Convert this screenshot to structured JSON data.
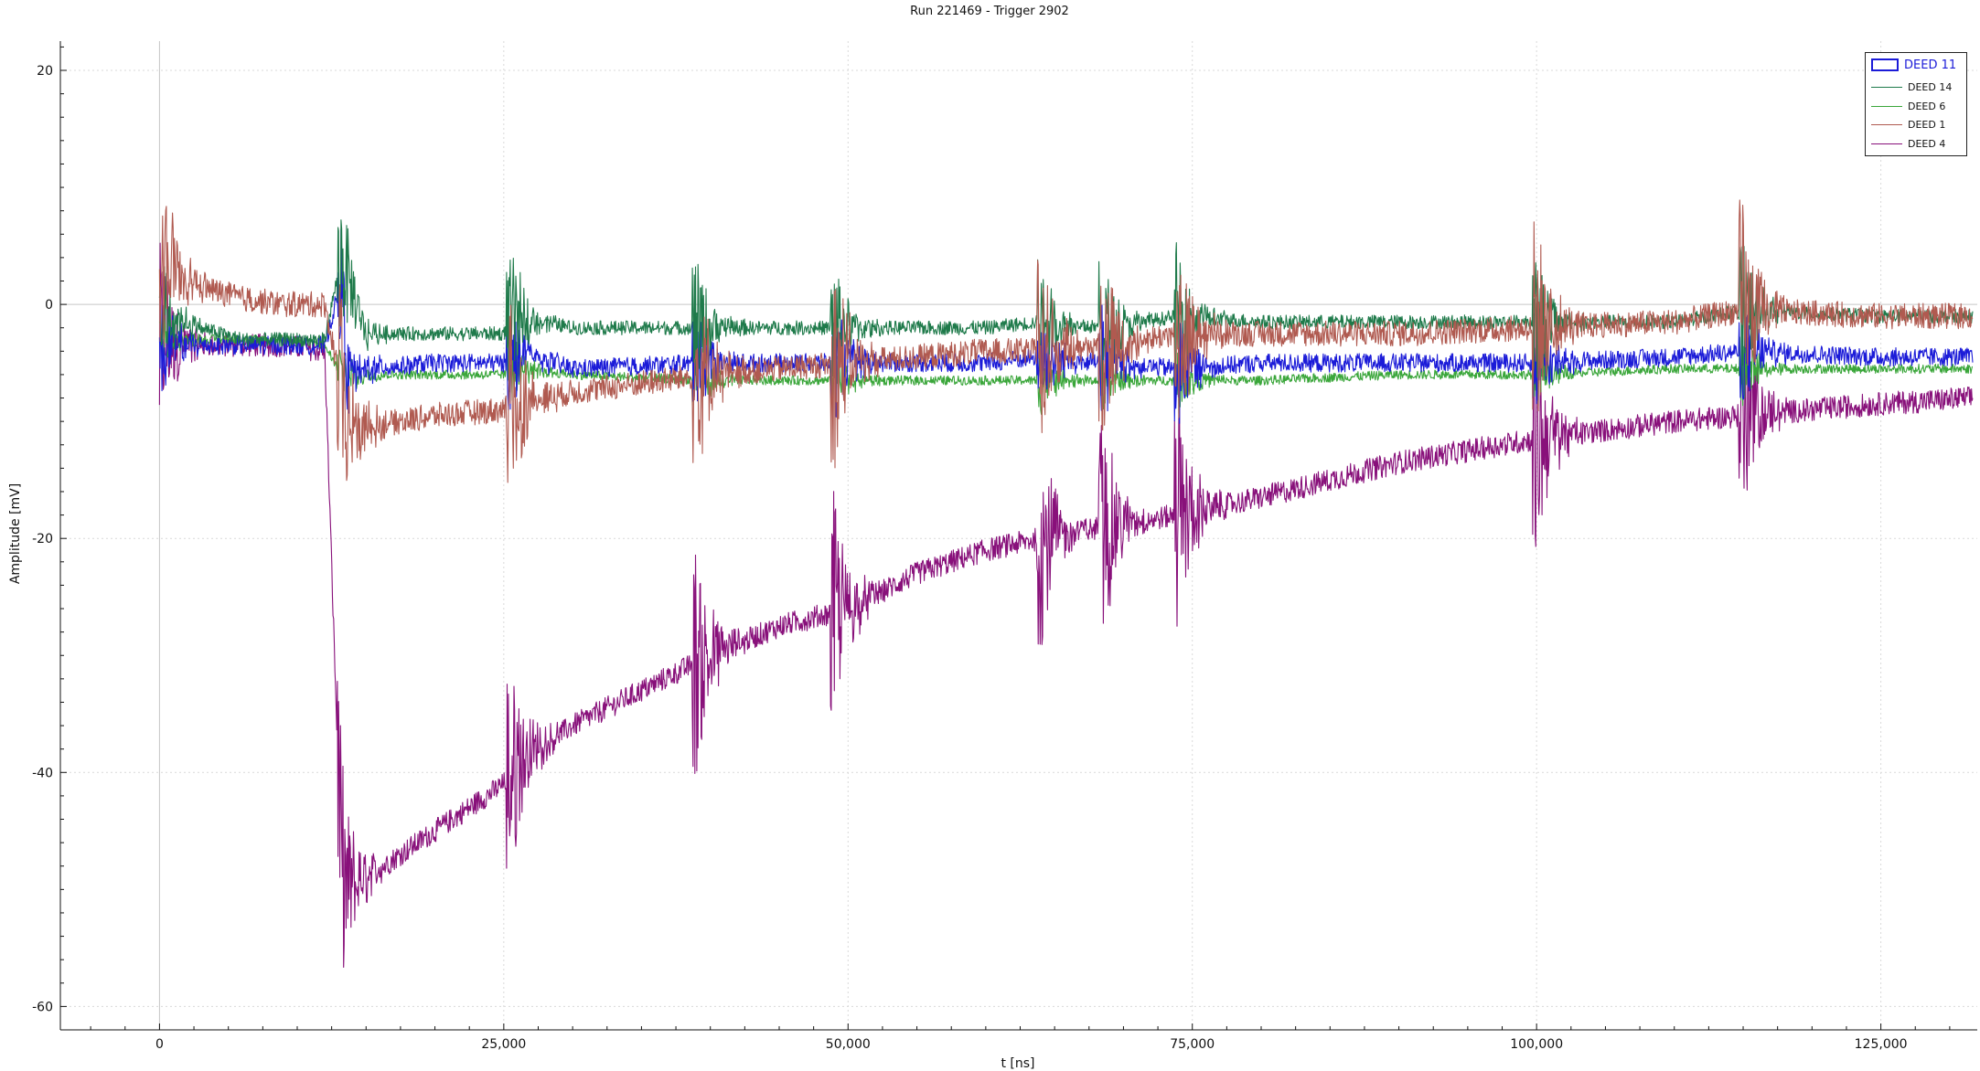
{
  "chart_data": {
    "type": "line",
    "title": "Run 221469 - Trigger 2902",
    "xlabel": "t [ns]",
    "ylabel": "Amplitude [mV]",
    "xlim": [
      -7200,
      132000
    ],
    "ylim": [
      -62,
      22.5
    ],
    "xticks": [
      0,
      25000,
      50000,
      75000,
      100000,
      125000
    ],
    "xtick_labels": [
      "0",
      "25,000",
      "50,000",
      "75,000",
      "100,000",
      "125,000"
    ],
    "yticks": [
      -60,
      -40,
      -20,
      0,
      20
    ],
    "ytick_labels": [
      "-60",
      "-40",
      "-20",
      "0",
      "20"
    ],
    "grid": true,
    "legend_position": "top-right",
    "series": [
      {
        "name": "DEED 11",
        "color": "#1b1bd8",
        "selected": true,
        "x": [
          0,
          200,
          1000,
          3000,
          6000,
          9000,
          12000,
          13200,
          13600,
          15000,
          20000,
          25000,
          26000,
          30000,
          40000,
          50000,
          60000,
          64000,
          68500,
          74000,
          80000,
          90000,
          100000,
          110000,
          115000,
          125000,
          131500
        ],
        "values": [
          -4.5,
          -4,
          -3.5,
          -3.5,
          -3.5,
          -3.5,
          -3.5,
          2,
          -6,
          -5.5,
          -5,
          -5,
          -4,
          -5.5,
          -5,
          -5,
          -5,
          -4.5,
          -5,
          -5.5,
          -5,
          -5,
          -5,
          -4.5,
          -4,
          -4.5,
          -4.5
        ]
      },
      {
        "name": "DEED 14",
        "color": "#1e7a4a",
        "x": [
          0,
          200,
          1000,
          3000,
          6000,
          9000,
          12000,
          13200,
          14000,
          15000,
          20000,
          25000,
          26000,
          30000,
          40000,
          50000,
          60000,
          64000,
          68500,
          74000,
          80000,
          90000,
          100000,
          110000,
          115000,
          125000,
          131500
        ],
        "values": [
          -3,
          0,
          -1,
          -2,
          -3,
          -3,
          -3,
          4,
          1,
          -2.5,
          -2.5,
          -2.5,
          -1,
          -2,
          -2,
          -2,
          -2,
          -1.5,
          -2,
          -1,
          -1.5,
          -1.5,
          -1.5,
          -1.5,
          -0.5,
          -1,
          -1
        ]
      },
      {
        "name": "DEED 6",
        "color": "#3aa63a",
        "x": [
          0,
          200,
          1000,
          3000,
          6000,
          9000,
          12000,
          13200,
          14000,
          15000,
          20000,
          25000,
          26000,
          30000,
          40000,
          50000,
          60000,
          64000,
          68500,
          74000,
          80000,
          90000,
          100000,
          110000,
          115000,
          125000,
          131500
        ],
        "values": [
          -3,
          -3,
          -3,
          -3,
          -3,
          -3,
          -3.5,
          -6,
          -6,
          -6,
          -6,
          -6,
          -5.5,
          -6,
          -6.5,
          -6.5,
          -6.5,
          -6.5,
          -6.5,
          -6.5,
          -6.5,
          -6,
          -6,
          -5.5,
          -5.5,
          -5.5,
          -5.5
        ]
      },
      {
        "name": "DEED 1",
        "color": "#b05a50",
        "x": [
          0,
          200,
          1000,
          3000,
          6000,
          9000,
          12000,
          13200,
          13500,
          15000,
          20000,
          25000,
          26000,
          30000,
          40000,
          50000,
          60000,
          64000,
          68500,
          74000,
          80000,
          90000,
          100000,
          110000,
          115000,
          125000,
          131500
        ],
        "values": [
          0,
          4,
          3,
          1.5,
          0.5,
          0,
          0,
          -7,
          -10.5,
          -10.5,
          -9.5,
          -9,
          -8.5,
          -7.5,
          -6,
          -5,
          -4,
          -4,
          -3.5,
          -2.5,
          -2.5,
          -2.5,
          -2,
          -1.5,
          -0.5,
          -1,
          -1
        ]
      },
      {
        "name": "DEED 4",
        "color": "#88107a",
        "x": [
          0,
          200,
          1000,
          3000,
          6000,
          9000,
          12000,
          13200,
          13500,
          15000,
          20000,
          25000,
          26000,
          30000,
          35000,
          40000,
          45000,
          50000,
          55000,
          60000,
          64000,
          68500,
          74000,
          80000,
          90000,
          100000,
          110000,
          115000,
          125000,
          131500
        ],
        "values": [
          -5,
          -3,
          -3.5,
          -3.5,
          -3.5,
          -3.5,
          -4,
          -48,
          -50,
          -49,
          -45,
          -41,
          -39,
          -36,
          -33,
          -30,
          -27.5,
          -26,
          -23,
          -21,
          -20,
          -19,
          -18,
          -16.5,
          -13.5,
          -11.5,
          -10,
          -9.5,
          -8.5,
          -8
        ]
      }
    ]
  }
}
